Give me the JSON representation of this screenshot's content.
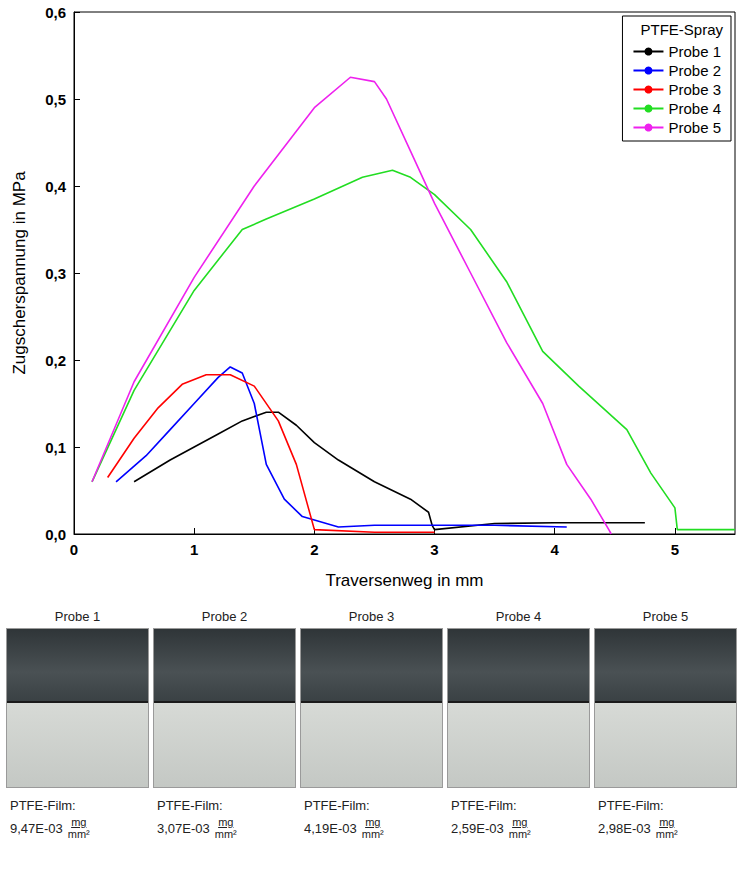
{
  "chart_data": {
    "type": "line",
    "x_label": "Traversenweg in mm",
    "y_label": "Zugscherspannung in MPa",
    "legend_title": "PTFE-Spray",
    "legend": "upper right",
    "grid": false,
    "xlim": [
      0,
      5.5
    ],
    "xticks": [
      0,
      1,
      2,
      3,
      4,
      5
    ],
    "ylim": [
      0,
      0.6
    ],
    "yticks": [
      {
        "value": 0,
        "label": "0,0"
      },
      {
        "value": 0.1,
        "label": "0,1"
      },
      {
        "value": 0.2,
        "label": "0,2"
      },
      {
        "value": 0.3,
        "label": "0,3"
      },
      {
        "value": 0.4,
        "label": "0,4"
      },
      {
        "value": 0.5,
        "label": "0,5"
      },
      {
        "value": 0.6,
        "label": "0,6"
      }
    ],
    "series": [
      {
        "name": "Probe 1",
        "color": "#000000",
        "x": [
          0.5,
          0.8,
          1.0,
          1.2,
          1.4,
          1.6,
          1.7,
          1.85,
          2.0,
          2.2,
          2.5,
          2.8,
          2.95,
          2.98,
          3.0,
          3.5,
          4.0,
          4.75
        ],
        "values": [
          0.06,
          0.085,
          0.1,
          0.115,
          0.13,
          0.14,
          0.14,
          0.125,
          0.105,
          0.085,
          0.06,
          0.04,
          0.025,
          0.01,
          0.005,
          0.012,
          0.013,
          0.013
        ]
      },
      {
        "name": "Probe 2",
        "color": "#0000ff",
        "x": [
          0.35,
          0.6,
          0.8,
          1.0,
          1.2,
          1.3,
          1.4,
          1.5,
          1.6,
          1.75,
          1.9,
          2.2,
          2.5,
          3.0,
          3.5,
          4.1
        ],
        "values": [
          0.06,
          0.09,
          0.12,
          0.15,
          0.18,
          0.192,
          0.185,
          0.15,
          0.08,
          0.04,
          0.02,
          0.008,
          0.01,
          0.01,
          0.01,
          0.008
        ]
      },
      {
        "name": "Probe 3",
        "color": "#ff0000",
        "x": [
          0.28,
          0.5,
          0.7,
          0.9,
          1.1,
          1.3,
          1.5,
          1.7,
          1.85,
          1.95,
          2.0,
          2.5,
          3.0
        ],
        "values": [
          0.065,
          0.11,
          0.145,
          0.172,
          0.183,
          0.183,
          0.17,
          0.13,
          0.08,
          0.03,
          0.005,
          0.002,
          0.002
        ]
      },
      {
        "name": "Probe 4",
        "color": "#22dd22",
        "x": [
          0.15,
          0.5,
          1.0,
          1.4,
          1.6,
          2.0,
          2.4,
          2.65,
          2.8,
          3.0,
          3.3,
          3.6,
          3.9,
          4.2,
          4.6,
          4.8,
          5.0,
          5.02,
          5.5
        ],
        "values": [
          0.06,
          0.165,
          0.28,
          0.35,
          0.362,
          0.385,
          0.41,
          0.418,
          0.41,
          0.39,
          0.35,
          0.29,
          0.21,
          0.17,
          0.12,
          0.07,
          0.03,
          0.005,
          0.005
        ]
      },
      {
        "name": "Probe 5",
        "color": "#ee22ee",
        "x": [
          0.15,
          0.5,
          1.0,
          1.5,
          2.0,
          2.3,
          2.5,
          2.6,
          2.8,
          3.0,
          3.3,
          3.6,
          3.9,
          4.1,
          4.3,
          4.45,
          4.47
        ],
        "values": [
          0.06,
          0.175,
          0.295,
          0.4,
          0.49,
          0.525,
          0.52,
          0.5,
          0.44,
          0.38,
          0.3,
          0.22,
          0.15,
          0.08,
          0.04,
          0.005,
          0.0
        ]
      }
    ]
  },
  "samples": [
    {
      "title": "Probe 1",
      "label": "PTFE-Film:",
      "value": "9,47E-03",
      "unit_numerator": "mg",
      "unit_denominator": "mm²"
    },
    {
      "title": "Probe 2",
      "label": "PTFE-Film:",
      "value": "3,07E-03",
      "unit_numerator": "mg",
      "unit_denominator": "mm²"
    },
    {
      "title": "Probe 3",
      "label": "PTFE-Film:",
      "value": "4,19E-03",
      "unit_numerator": "mg",
      "unit_denominator": "mm²"
    },
    {
      "title": "Probe 4",
      "label": "PTFE-Film:",
      "value": "2,59E-03",
      "unit_numerator": "mg",
      "unit_denominator": "mm²"
    },
    {
      "title": "Probe 5",
      "label": "PTFE-Film:",
      "value": "2,98E-03",
      "unit_numerator": "mg",
      "unit_denominator": "mm²"
    }
  ]
}
